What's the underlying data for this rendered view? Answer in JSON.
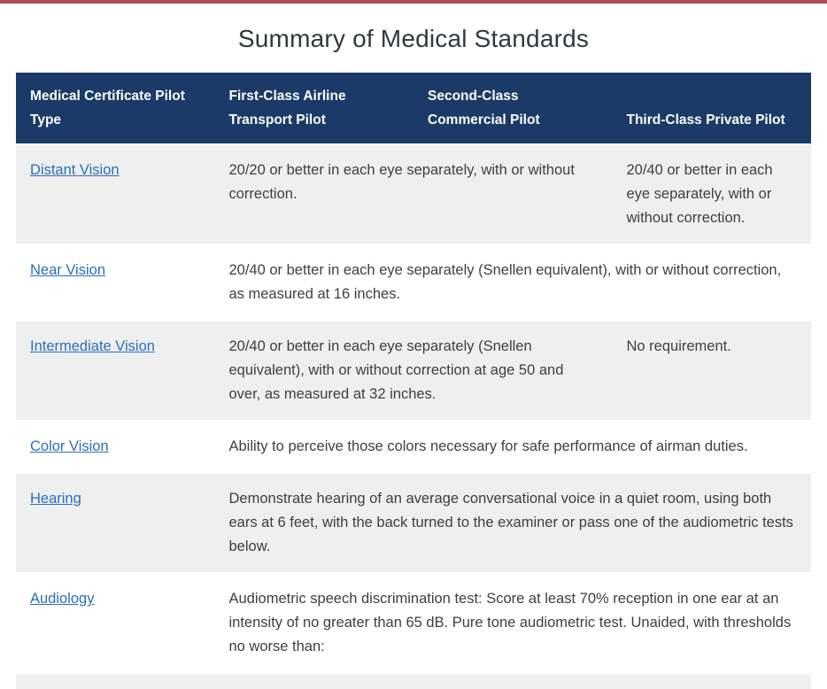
{
  "page": {
    "title": "Summary of Medical Standards"
  },
  "theme": {
    "top_bar_color": "#b34a57",
    "header_bg": "#1b3a68",
    "header_text": "#ffffff",
    "alt_row_bg": "#efefef",
    "link_color": "#2a6ebb",
    "body_text": "#3b4045"
  },
  "table": {
    "headers": [
      {
        "label": "Medical Certificate Pilot\nType"
      },
      {
        "label": "First-Class Airline\nTransport Pilot"
      },
      {
        "label": "Second-Class\nCommercial Pilot"
      },
      {
        "label": "Third-Class Private Pilot"
      }
    ],
    "rows": [
      {
        "topic": "Distant Vision",
        "cells": [
          {
            "text": "20/20 or better in each eye separately, with or without correction."
          },
          {
            "text": "20/40 or better in each eye separately, with or without correction."
          }
        ]
      },
      {
        "topic": "Near Vision",
        "cells": [
          {
            "text": "20/40 or better in each eye separately (Snellen equivalent), with or without correction, as measured at 16 inches."
          }
        ]
      },
      {
        "topic": "Intermediate Vision",
        "cells": [
          {
            "text": "20/40 or better in each eye separately (Snellen equivalent), with or without correction at age 50 and over, as measured at 32 inches."
          },
          {
            "text": "No requirement."
          }
        ]
      },
      {
        "topic": "Color Vision",
        "cells": [
          {
            "text": "Ability to perceive those colors necessary for safe performance of airman duties."
          }
        ]
      },
      {
        "topic": "Hearing",
        "cells": [
          {
            "text": "Demonstrate hearing of an average conversational voice in a quiet room, using both ears at 6 feet, with the back turned to the examiner or pass one of the audiometric tests below."
          }
        ]
      },
      {
        "topic": "Audiology",
        "cells": [
          {
            "text": "Audiometric speech discrimination test: Score at least 70% reception in one ear at an intensity of no greater than 65 dB. Pure tone audiometric test. Unaided, with thresholds no worse than:"
          }
        ]
      }
    ]
  }
}
